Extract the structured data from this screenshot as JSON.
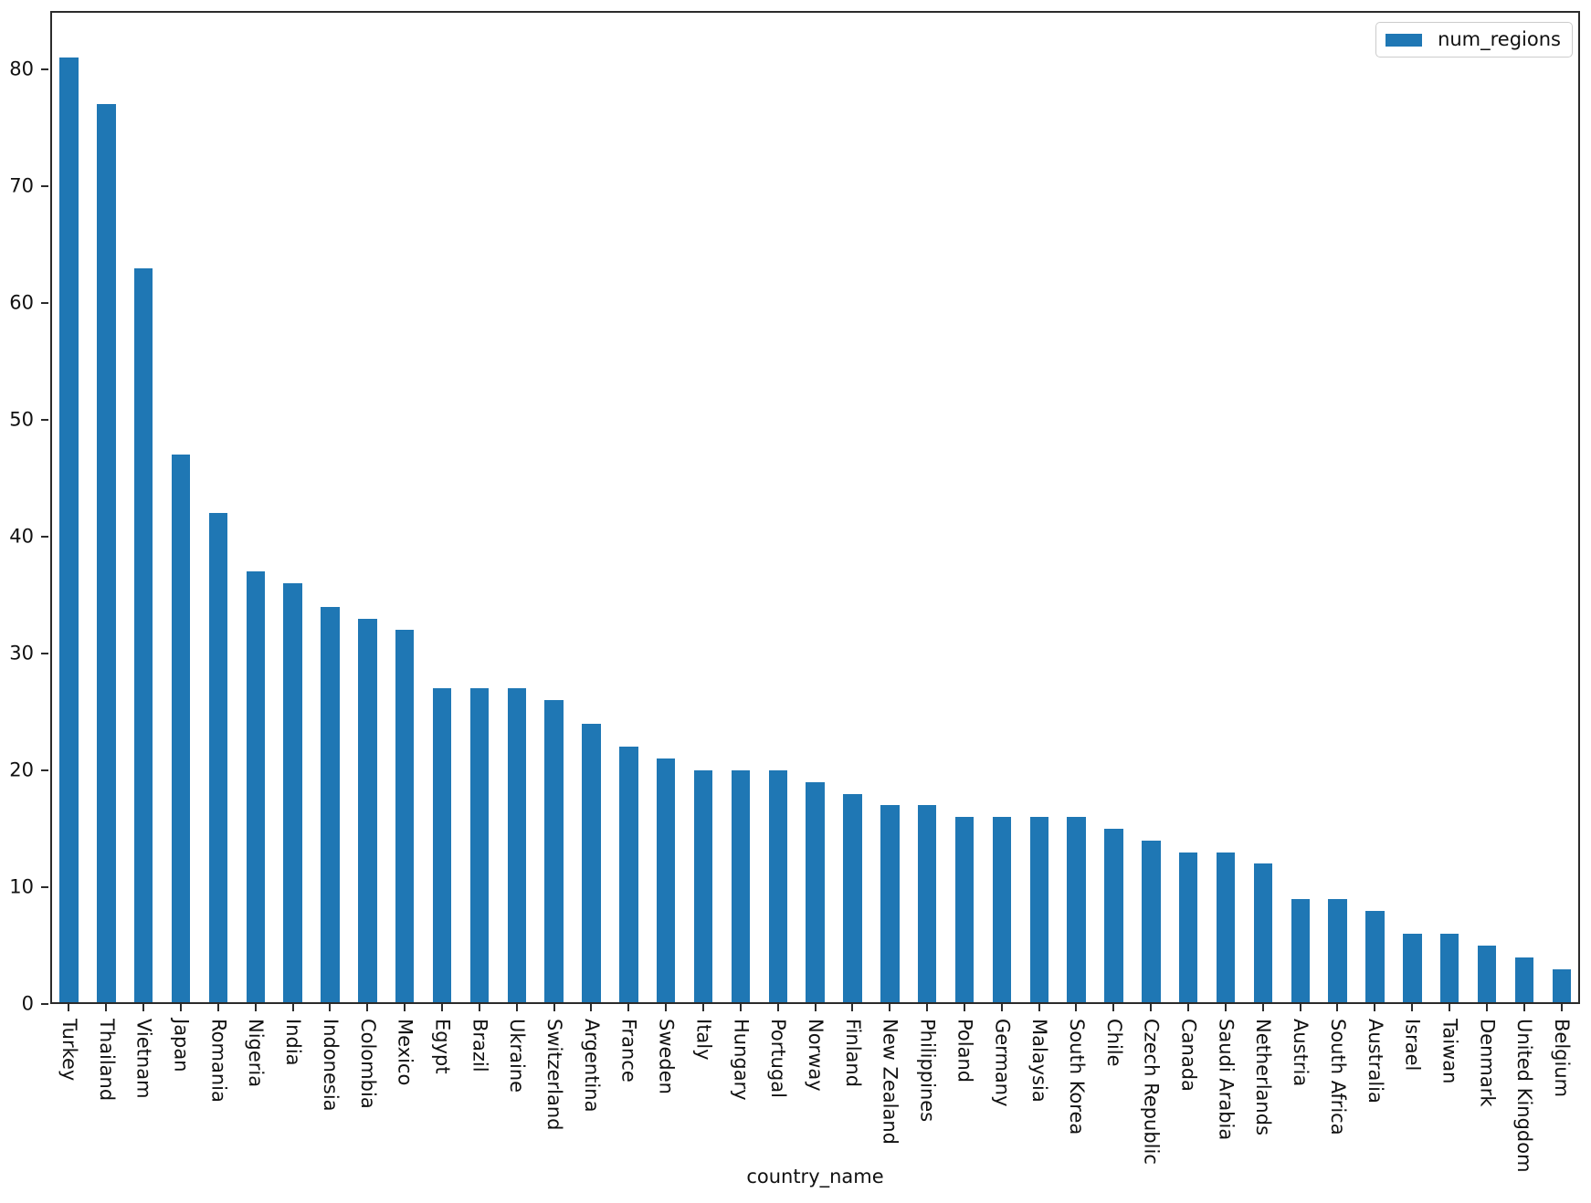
{
  "chart_data": {
    "type": "bar",
    "title": "",
    "xlabel": "country_name",
    "ylabel": "",
    "grid": false,
    "legend": {
      "label": "num_regions",
      "position": "upper-right"
    },
    "bar_color": "#1f77b4",
    "axis_color": "#2b2b2b",
    "text_color": "#111111",
    "ylim": [
      0,
      85
    ],
    "yticks": [
      0,
      10,
      20,
      30,
      40,
      50,
      60,
      70,
      80
    ],
    "categories": [
      "Turkey",
      "Thailand",
      "Vietnam",
      "Japan",
      "Romania",
      "Nigeria",
      "India",
      "Indonesia",
      "Colombia",
      "Mexico",
      "Egypt",
      "Brazil",
      "Ukraine",
      "Switzerland",
      "Argentina",
      "France",
      "Sweden",
      "Italy",
      "Hungary",
      "Portugal",
      "Norway",
      "Finland",
      "New Zealand",
      "Philippines",
      "Poland",
      "Germany",
      "Malaysia",
      "South Korea",
      "Chile",
      "Czech Republic",
      "Canada",
      "Saudi Arabia",
      "Netherlands",
      "Austria",
      "South Africa",
      "Australia",
      "Israel",
      "Taiwan",
      "Denmark",
      "United Kingdom",
      "Belgium"
    ],
    "values": [
      81,
      77,
      63,
      47,
      42,
      37,
      36,
      34,
      33,
      32,
      27,
      27,
      27,
      26,
      24,
      22,
      21,
      20,
      20,
      20,
      19,
      18,
      17,
      17,
      16,
      16,
      16,
      16,
      15,
      14,
      13,
      13,
      12,
      9,
      9,
      8,
      6,
      6,
      5,
      4,
      3
    ]
  }
}
